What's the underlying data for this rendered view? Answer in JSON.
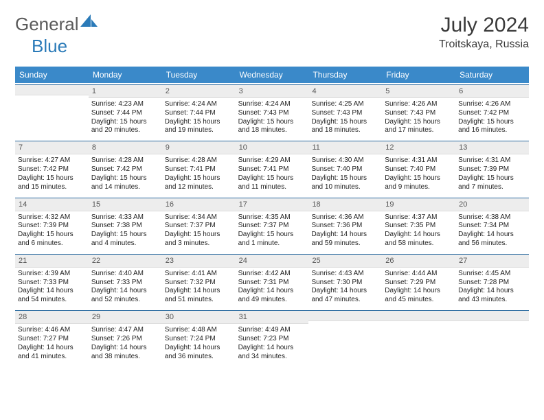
{
  "brand": {
    "part1": "General",
    "part2": "Blue"
  },
  "title": {
    "month": "July 2024",
    "location": "Troitskaya, Russia"
  },
  "colors": {
    "header_bg": "#3a89c9",
    "header_text": "#ffffff",
    "daynum_bg": "#ededed",
    "daynum_border_top": "#2a6aa0",
    "text": "#222222",
    "brand_gray": "#5a5a5a",
    "brand_blue": "#2a7ab8"
  },
  "day_names": [
    "Sunday",
    "Monday",
    "Tuesday",
    "Wednesday",
    "Thursday",
    "Friday",
    "Saturday"
  ],
  "weeks": [
    [
      {
        "n": "",
        "sr": "",
        "ss": "",
        "dl": ""
      },
      {
        "n": "1",
        "sr": "Sunrise: 4:23 AM",
        "ss": "Sunset: 7:44 PM",
        "dl": "Daylight: 15 hours and 20 minutes."
      },
      {
        "n": "2",
        "sr": "Sunrise: 4:24 AM",
        "ss": "Sunset: 7:44 PM",
        "dl": "Daylight: 15 hours and 19 minutes."
      },
      {
        "n": "3",
        "sr": "Sunrise: 4:24 AM",
        "ss": "Sunset: 7:43 PM",
        "dl": "Daylight: 15 hours and 18 minutes."
      },
      {
        "n": "4",
        "sr": "Sunrise: 4:25 AM",
        "ss": "Sunset: 7:43 PM",
        "dl": "Daylight: 15 hours and 18 minutes."
      },
      {
        "n": "5",
        "sr": "Sunrise: 4:26 AM",
        "ss": "Sunset: 7:43 PM",
        "dl": "Daylight: 15 hours and 17 minutes."
      },
      {
        "n": "6",
        "sr": "Sunrise: 4:26 AM",
        "ss": "Sunset: 7:42 PM",
        "dl": "Daylight: 15 hours and 16 minutes."
      }
    ],
    [
      {
        "n": "7",
        "sr": "Sunrise: 4:27 AM",
        "ss": "Sunset: 7:42 PM",
        "dl": "Daylight: 15 hours and 15 minutes."
      },
      {
        "n": "8",
        "sr": "Sunrise: 4:28 AM",
        "ss": "Sunset: 7:42 PM",
        "dl": "Daylight: 15 hours and 14 minutes."
      },
      {
        "n": "9",
        "sr": "Sunrise: 4:28 AM",
        "ss": "Sunset: 7:41 PM",
        "dl": "Daylight: 15 hours and 12 minutes."
      },
      {
        "n": "10",
        "sr": "Sunrise: 4:29 AM",
        "ss": "Sunset: 7:41 PM",
        "dl": "Daylight: 15 hours and 11 minutes."
      },
      {
        "n": "11",
        "sr": "Sunrise: 4:30 AM",
        "ss": "Sunset: 7:40 PM",
        "dl": "Daylight: 15 hours and 10 minutes."
      },
      {
        "n": "12",
        "sr": "Sunrise: 4:31 AM",
        "ss": "Sunset: 7:40 PM",
        "dl": "Daylight: 15 hours and 9 minutes."
      },
      {
        "n": "13",
        "sr": "Sunrise: 4:31 AM",
        "ss": "Sunset: 7:39 PM",
        "dl": "Daylight: 15 hours and 7 minutes."
      }
    ],
    [
      {
        "n": "14",
        "sr": "Sunrise: 4:32 AM",
        "ss": "Sunset: 7:39 PM",
        "dl": "Daylight: 15 hours and 6 minutes."
      },
      {
        "n": "15",
        "sr": "Sunrise: 4:33 AM",
        "ss": "Sunset: 7:38 PM",
        "dl": "Daylight: 15 hours and 4 minutes."
      },
      {
        "n": "16",
        "sr": "Sunrise: 4:34 AM",
        "ss": "Sunset: 7:37 PM",
        "dl": "Daylight: 15 hours and 3 minutes."
      },
      {
        "n": "17",
        "sr": "Sunrise: 4:35 AM",
        "ss": "Sunset: 7:37 PM",
        "dl": "Daylight: 15 hours and 1 minute."
      },
      {
        "n": "18",
        "sr": "Sunrise: 4:36 AM",
        "ss": "Sunset: 7:36 PM",
        "dl": "Daylight: 14 hours and 59 minutes."
      },
      {
        "n": "19",
        "sr": "Sunrise: 4:37 AM",
        "ss": "Sunset: 7:35 PM",
        "dl": "Daylight: 14 hours and 58 minutes."
      },
      {
        "n": "20",
        "sr": "Sunrise: 4:38 AM",
        "ss": "Sunset: 7:34 PM",
        "dl": "Daylight: 14 hours and 56 minutes."
      }
    ],
    [
      {
        "n": "21",
        "sr": "Sunrise: 4:39 AM",
        "ss": "Sunset: 7:33 PM",
        "dl": "Daylight: 14 hours and 54 minutes."
      },
      {
        "n": "22",
        "sr": "Sunrise: 4:40 AM",
        "ss": "Sunset: 7:33 PM",
        "dl": "Daylight: 14 hours and 52 minutes."
      },
      {
        "n": "23",
        "sr": "Sunrise: 4:41 AM",
        "ss": "Sunset: 7:32 PM",
        "dl": "Daylight: 14 hours and 51 minutes."
      },
      {
        "n": "24",
        "sr": "Sunrise: 4:42 AM",
        "ss": "Sunset: 7:31 PM",
        "dl": "Daylight: 14 hours and 49 minutes."
      },
      {
        "n": "25",
        "sr": "Sunrise: 4:43 AM",
        "ss": "Sunset: 7:30 PM",
        "dl": "Daylight: 14 hours and 47 minutes."
      },
      {
        "n": "26",
        "sr": "Sunrise: 4:44 AM",
        "ss": "Sunset: 7:29 PM",
        "dl": "Daylight: 14 hours and 45 minutes."
      },
      {
        "n": "27",
        "sr": "Sunrise: 4:45 AM",
        "ss": "Sunset: 7:28 PM",
        "dl": "Daylight: 14 hours and 43 minutes."
      }
    ],
    [
      {
        "n": "28",
        "sr": "Sunrise: 4:46 AM",
        "ss": "Sunset: 7:27 PM",
        "dl": "Daylight: 14 hours and 41 minutes."
      },
      {
        "n": "29",
        "sr": "Sunrise: 4:47 AM",
        "ss": "Sunset: 7:26 PM",
        "dl": "Daylight: 14 hours and 38 minutes."
      },
      {
        "n": "30",
        "sr": "Sunrise: 4:48 AM",
        "ss": "Sunset: 7:24 PM",
        "dl": "Daylight: 14 hours and 36 minutes."
      },
      {
        "n": "31",
        "sr": "Sunrise: 4:49 AM",
        "ss": "Sunset: 7:23 PM",
        "dl": "Daylight: 14 hours and 34 minutes."
      },
      {
        "n": "",
        "sr": "",
        "ss": "",
        "dl": ""
      },
      {
        "n": "",
        "sr": "",
        "ss": "",
        "dl": ""
      },
      {
        "n": "",
        "sr": "",
        "ss": "",
        "dl": ""
      }
    ]
  ]
}
